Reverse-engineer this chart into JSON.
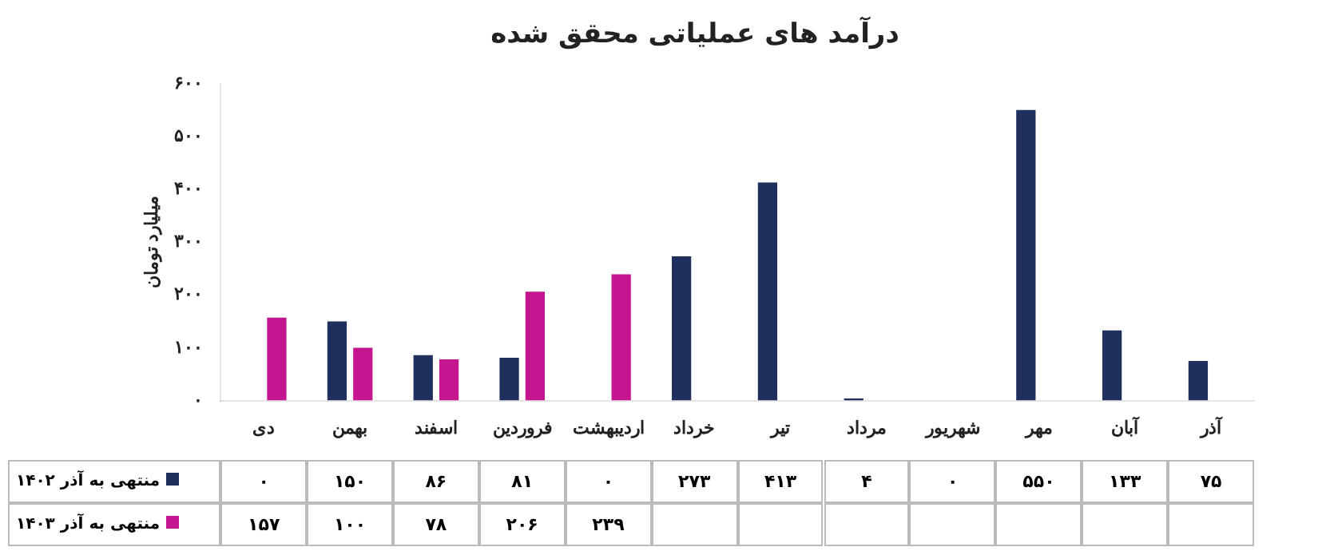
{
  "chart_data": {
    "type": "bar",
    "title": "درآمد های عملیاتی محقق شده",
    "ylabel": "میلیارد تومان",
    "categories": [
      "دی",
      "بهمن",
      "اسفند",
      "فروردین",
      "اردیبهشت",
      "خرداد",
      "تیر",
      "مرداد",
      "شهریور",
      "مهر",
      "آبان",
      "آذر"
    ],
    "series": [
      {
        "name": "منتهی به آذر ۱۴۰۲",
        "color": "#1f2f5e",
        "values": [
          0,
          150,
          86,
          81,
          0,
          273,
          413,
          4,
          0,
          550,
          133,
          75
        ],
        "value_labels": [
          "۰",
          "۱۵۰",
          "۸۶",
          "۸۱",
          "۰",
          "۲۷۳",
          "۴۱۳",
          "۴",
          "۰",
          "۵۵۰",
          "۱۳۳",
          "۷۵"
        ]
      },
      {
        "name": "منتهی به آذر ۱۴۰۳",
        "color": "#c4168f",
        "values": [
          157,
          100,
          78,
          206,
          239,
          null,
          null,
          null,
          null,
          null,
          null,
          null
        ],
        "value_labels": [
          "۱۵۷",
          "۱۰۰",
          "۷۸",
          "۲۰۶",
          "۲۳۹",
          null,
          null,
          null,
          null,
          null,
          null,
          null
        ]
      }
    ],
    "ylim": [
      0,
      600
    ],
    "yticks": [
      {
        "value": 0,
        "label": "۰"
      },
      {
        "value": 100,
        "label": "۱۰۰"
      },
      {
        "value": 200,
        "label": "۲۰۰"
      },
      {
        "value": 300,
        "label": "۳۰۰"
      },
      {
        "value": 400,
        "label": "۴۰۰"
      },
      {
        "value": 500,
        "label": "۵۰۰"
      },
      {
        "value": 600,
        "label": "۶۰۰"
      }
    ],
    "grid": false,
    "legend": "bottom left"
  }
}
